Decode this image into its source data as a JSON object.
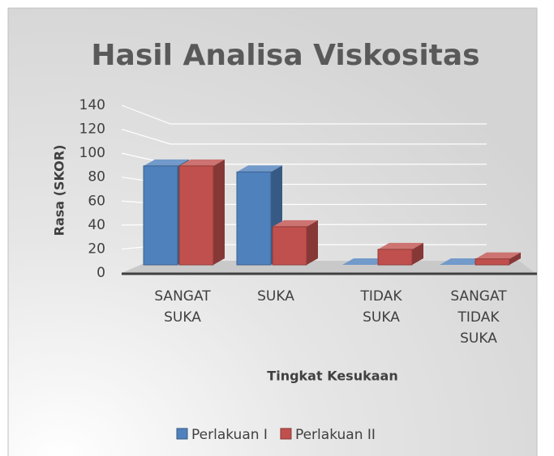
{
  "chart_data": {
    "type": "bar3d",
    "title": "Hasil Analisa Viskositas",
    "x_label": "Tingkat Kesukaan",
    "y_label": "Rasa (SKOR)",
    "categories": [
      "SANGAT SUKA",
      "SUKA",
      "TIDAK SUKA",
      "SANGAT TIDAK SUKA"
    ],
    "series": [
      {
        "name": "Perlakuan I",
        "color": "#4f81bd",
        "values": [
          83,
          78,
          0,
          0
        ]
      },
      {
        "name": "Perlakuan II",
        "color": "#c0504d",
        "values": [
          83,
          32,
          13,
          5
        ]
      }
    ],
    "ylim": [
      0,
      140
    ],
    "yticks": [
      0,
      20,
      40,
      60,
      80,
      100,
      120,
      140
    ],
    "grid": true,
    "legend": "bottom"
  }
}
